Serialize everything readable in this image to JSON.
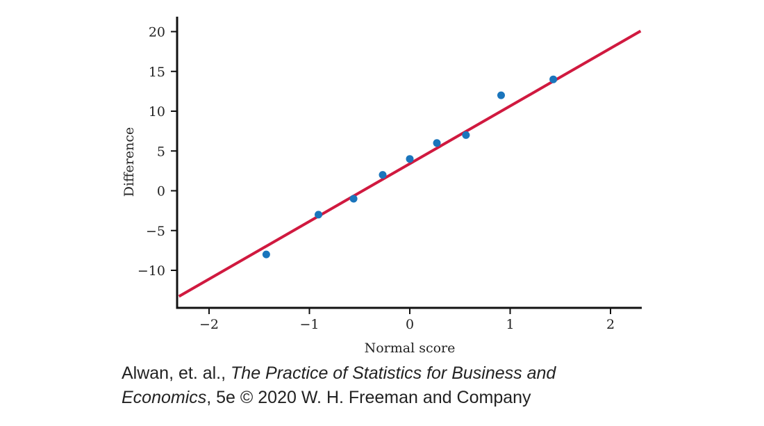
{
  "chart_data": {
    "type": "scatter",
    "xlabel": "Normal score",
    "ylabel": "Difference",
    "xlim": [
      -2.3,
      2.3
    ],
    "ylim": [
      -14.5,
      22
    ],
    "x_ticks": [
      -2,
      -1,
      0,
      1,
      2
    ],
    "x_tick_labels": [
      "−2",
      "−1",
      "0",
      "1",
      "2"
    ],
    "y_ticks": [
      -10,
      -5,
      0,
      5,
      10,
      15,
      20
    ],
    "y_tick_labels": [
      "−10",
      "−5",
      "0",
      "5",
      "10",
      "15",
      "20"
    ],
    "grid": false,
    "points": [
      {
        "x": -1.43,
        "y": -8
      },
      {
        "x": -0.91,
        "y": -3
      },
      {
        "x": -0.56,
        "y": -1
      },
      {
        "x": -0.27,
        "y": 2
      },
      {
        "x": 0.0,
        "y": 4
      },
      {
        "x": 0.27,
        "y": 6
      },
      {
        "x": 0.56,
        "y": 7
      },
      {
        "x": 0.91,
        "y": 12
      },
      {
        "x": 1.43,
        "y": 14
      }
    ],
    "reference_line": {
      "slope": 7.25,
      "intercept": 3.4
    },
    "colors": {
      "points": "#1a75bc",
      "line": "#d0193f",
      "axes": "#111111"
    }
  },
  "caption": {
    "line1_pre": "Alwan, et. al., ",
    "line1_italic": "The Practice of Statistics for Business and",
    "line2_italic": "Economics",
    "line2_post": ", 5e © 2020 W. H. Freeman and Company"
  }
}
